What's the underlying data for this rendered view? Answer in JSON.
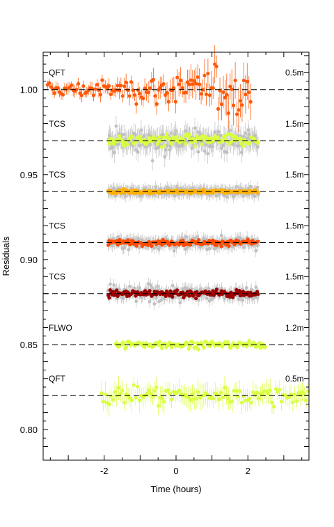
{
  "chart_data": {
    "type": "scatter",
    "xlabel": "Time (hours)",
    "ylabel": "Residuals",
    "xlim": [
      -3.7,
      3.7
    ],
    "ylim": [
      0.782,
      1.022
    ],
    "x_ticks": [
      -2,
      0,
      2
    ],
    "x_tick_labels": [
      "-2",
      "0",
      "2"
    ],
    "y_ticks": [
      0.8,
      0.85,
      0.9,
      0.95,
      1.0
    ],
    "y_tick_labels": [
      "0.80",
      "0.85",
      "0.90",
      "0.95",
      "1.00"
    ],
    "grid": false,
    "error_bar_color": "#c8c8c8",
    "background_points_color": "#c0c0c0",
    "series": [
      {
        "name": "QFT",
        "telescope": "0.5m",
        "baseline": 1.0,
        "x_range": [
          -3.6,
          2.1
        ],
        "color": "#ff5a0a",
        "n_points": 120,
        "scatter": 0.003,
        "err": 0.003,
        "errors_grow": true,
        "background_points": false
      },
      {
        "name": "TCS",
        "telescope": "1.5m",
        "baseline": 0.97,
        "x_range": [
          -1.9,
          2.3
        ],
        "color": "#d8ff40",
        "n_points": 150,
        "scatter": 0.0025,
        "err": 0.005,
        "errors_grow": false,
        "background_points": true
      },
      {
        "name": "TCS",
        "telescope": "1.5m",
        "baseline": 0.94,
        "x_range": [
          -1.9,
          2.3
        ],
        "color": "#ffb000",
        "n_points": 160,
        "scatter": 0.0008,
        "err": 0.003,
        "errors_grow": false,
        "background_points": true
      },
      {
        "name": "TCS",
        "telescope": "1.5m",
        "baseline": 0.91,
        "x_range": [
          -1.9,
          2.3
        ],
        "color": "#ff4a00",
        "n_points": 160,
        "scatter": 0.0012,
        "err": 0.003,
        "errors_grow": false,
        "background_points": true
      },
      {
        "name": "TCS",
        "telescope": "1.5m",
        "baseline": 0.88,
        "x_range": [
          -1.9,
          2.3
        ],
        "color": "#9b0000",
        "n_points": 160,
        "scatter": 0.0015,
        "err": 0.003,
        "errors_grow": false,
        "background_points": true
      },
      {
        "name": "FLWO",
        "telescope": "1.2m",
        "baseline": 0.85,
        "x_range": [
          -1.7,
          2.5
        ],
        "color": "#d8ff40",
        "n_points": 140,
        "scatter": 0.0015,
        "err": 0.0015,
        "errors_grow": false,
        "background_points": false
      },
      {
        "name": "QFT",
        "telescope": "0.5m",
        "baseline": 0.82,
        "x_range": [
          -2.1,
          3.7
        ],
        "color": "#d8ff40",
        "n_points": 110,
        "scatter": 0.0035,
        "err": 0.006,
        "errors_grow": false,
        "background_points": false
      }
    ]
  }
}
